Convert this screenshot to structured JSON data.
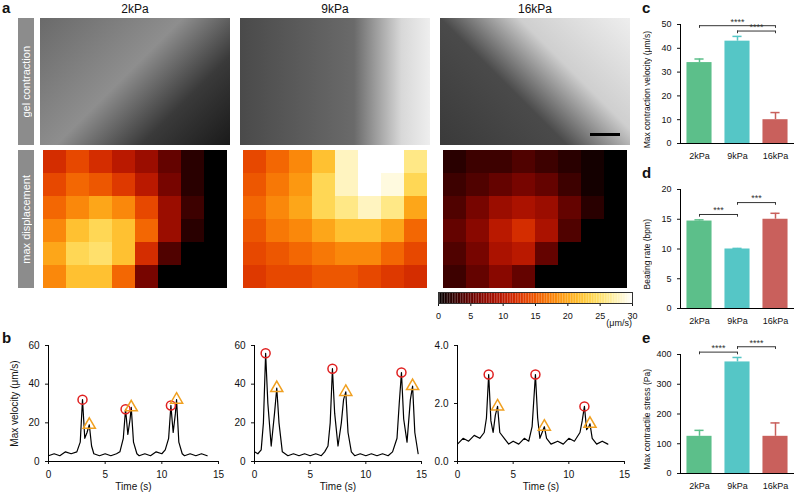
{
  "chart_data": [
    {
      "type": "heatmap",
      "panel": "a",
      "columns": [
        "2kPa",
        "9kPa",
        "16kPa"
      ],
      "rows": [
        "gel contraction",
        "max displacement"
      ],
      "tick_labels": false,
      "cells": [
        [
          [
            12,
            14,
            12,
            10,
            8,
            5,
            2,
            0
          ],
          [
            14,
            16,
            15,
            13,
            10,
            6,
            2,
            0
          ],
          [
            16,
            18,
            20,
            18,
            14,
            8,
            3,
            0
          ],
          [
            18,
            22,
            24,
            22,
            16,
            8,
            2,
            0
          ],
          [
            20,
            24,
            25,
            22,
            12,
            4,
            0,
            0
          ],
          [
            18,
            22,
            22,
            16,
            6,
            0,
            0,
            0
          ]
        ],
        [
          [
            14,
            16,
            18,
            22,
            28,
            30,
            30,
            26
          ],
          [
            15,
            17,
            19,
            24,
            28,
            30,
            29,
            24
          ],
          [
            16,
            18,
            20,
            24,
            26,
            28,
            26,
            20
          ],
          [
            15,
            17,
            18,
            20,
            22,
            22,
            20,
            16
          ],
          [
            14,
            15,
            16,
            17,
            18,
            18,
            16,
            14
          ],
          [
            13,
            14,
            14,
            15,
            15,
            14,
            13,
            12
          ]
        ],
        [
          [
            2,
            3,
            3,
            4,
            3,
            2,
            1,
            0
          ],
          [
            3,
            4,
            5,
            6,
            5,
            3,
            1,
            0
          ],
          [
            4,
            6,
            8,
            9,
            8,
            5,
            2,
            0
          ],
          [
            5,
            7,
            10,
            12,
            9,
            4,
            0,
            0
          ],
          [
            4,
            6,
            9,
            10,
            5,
            0,
            0,
            0
          ],
          [
            3,
            5,
            7,
            5,
            0,
            0,
            0,
            0
          ]
        ]
      ],
      "colorbar": {
        "range": [
          0,
          30
        ],
        "ticks": [
          0,
          5,
          10,
          15,
          20,
          25,
          30
        ],
        "label": "(μm/s)"
      }
    },
    {
      "type": "line",
      "panel": "b",
      "xlabel": "Time (s)",
      "ylabel": "Max velocity (μm/s)",
      "color": "#000000",
      "xlim": [
        0,
        15
      ],
      "xticks": [
        0,
        5,
        10,
        15
      ],
      "ylim": [
        0,
        60
      ],
      "yticks": [
        0,
        20,
        40,
        60
      ],
      "x": [
        0,
        0.5,
        1,
        1.5,
        2,
        2.5,
        2.8,
        3.0,
        3.2,
        3.4,
        3.6,
        3.8,
        4.0,
        4.5,
        5,
        5.5,
        6,
        6.3,
        6.6,
        6.8,
        7.0,
        7.2,
        7.3,
        7.5,
        7.8,
        8,
        8.5,
        9,
        9.5,
        10,
        10.3,
        10.6,
        10.8,
        11.0,
        11.2,
        11.3,
        11.5,
        11.8,
        12,
        12.5,
        13,
        13.5,
        14
      ],
      "values": [
        3,
        4,
        3,
        5,
        4,
        5,
        10,
        32,
        12,
        15,
        19,
        8,
        4,
        3,
        4,
        3,
        4,
        5,
        12,
        27,
        14,
        22,
        28,
        10,
        4,
        3,
        4,
        3,
        5,
        4,
        6,
        12,
        29,
        15,
        25,
        32,
        10,
        4,
        3,
        4,
        3,
        4,
        3
      ],
      "markers": [
        {
          "marker": "circle",
          "color": "#e02020",
          "x": [
            3.0,
            6.8,
            10.8
          ],
          "values": [
            32,
            27,
            29
          ]
        },
        {
          "marker": "triangle",
          "color": "#f0a020",
          "x": [
            3.6,
            7.3,
            11.3
          ],
          "values": [
            19,
            28,
            32
          ]
        }
      ]
    },
    {
      "type": "line",
      "xlabel": "Time (s)",
      "color": "#000000",
      "xlim": [
        0,
        15
      ],
      "xticks": [
        0,
        5,
        10,
        15
      ],
      "ylim": [
        0,
        60
      ],
      "yticks": [
        0,
        20,
        40,
        60
      ],
      "x": [
        0,
        0.3,
        0.6,
        0.8,
        1.0,
        1.2,
        1.5,
        1.8,
        2.0,
        2.2,
        2.5,
        3,
        3.5,
        4,
        4.5,
        5,
        5.5,
        6,
        6.3,
        6.6,
        6.8,
        7.0,
        7.2,
        7.5,
        7.8,
        8.0,
        8.2,
        8.4,
        8.7,
        9,
        9.5,
        10,
        10.5,
        11,
        11.5,
        12,
        12.4,
        12.8,
        13.0,
        13.2,
        13.4,
        13.7,
        14.0,
        14.2,
        14.4,
        14.7
      ],
      "values": [
        5,
        4,
        6,
        20,
        56,
        30,
        8,
        25,
        38,
        20,
        5,
        3,
        4,
        3,
        4,
        3,
        4,
        3,
        5,
        8,
        20,
        48,
        25,
        8,
        20,
        32,
        36,
        15,
        5,
        3,
        4,
        3,
        4,
        3,
        4,
        3,
        5,
        12,
        30,
        46,
        22,
        10,
        32,
        39,
        15,
        4
      ],
      "markers": [
        {
          "marker": "circle",
          "color": "#e02020",
          "x": [
            1.0,
            7.0,
            13.2
          ],
          "values": [
            56,
            48,
            46
          ]
        },
        {
          "marker": "triangle",
          "color": "#f0a020",
          "x": [
            2.0,
            8.2,
            14.2
          ],
          "values": [
            38,
            36,
            39
          ]
        }
      ]
    },
    {
      "type": "line",
      "xlabel": "Time (s)",
      "color": "#000000",
      "xlim": [
        0,
        15
      ],
      "xticks": [
        0,
        5,
        10,
        15
      ],
      "ylim": [
        0,
        4
      ],
      "yticks": [
        0,
        2,
        4
      ],
      "x": [
        0,
        0.5,
        1,
        1.5,
        2,
        2.4,
        2.6,
        2.8,
        3.0,
        3.2,
        3.4,
        3.6,
        3.8,
        4.2,
        4.6,
        5,
        5.5,
        6,
        6.4,
        6.7,
        7.0,
        7.2,
        7.4,
        7.6,
        7.8,
        8.0,
        8.4,
        9,
        9.5,
        10,
        10.5,
        11,
        11.2,
        11.4,
        11.6,
        11.8,
        11.9,
        12.1,
        12.5,
        13,
        13.5
      ],
      "values": [
        0.6,
        0.8,
        0.7,
        0.9,
        0.8,
        1.0,
        1.5,
        3.0,
        1.4,
        1.0,
        1.6,
        1.9,
        1.0,
        0.8,
        0.6,
        0.7,
        0.6,
        0.8,
        0.7,
        1.2,
        3.0,
        1.5,
        0.8,
        1.0,
        1.2,
        0.8,
        0.6,
        0.7,
        0.6,
        0.8,
        0.7,
        1.0,
        1.4,
        1.9,
        1.1,
        1.2,
        1.3,
        0.8,
        0.6,
        0.7,
        0.6
      ],
      "markers": [
        {
          "marker": "circle",
          "color": "#e02020",
          "x": [
            2.8,
            7.0,
            11.4
          ],
          "values": [
            3.0,
            3.0,
            1.9
          ]
        },
        {
          "marker": "triangle",
          "color": "#f0a020",
          "x": [
            3.6,
            7.8,
            11.9
          ],
          "values": [
            1.9,
            1.2,
            1.3
          ]
        }
      ]
    },
    {
      "type": "bar",
      "panel": "c",
      "ylabel": "Max contraction velocity (μm/s)",
      "categories": [
        "2kPa",
        "9kPa",
        "16kPa"
      ],
      "values": [
        34,
        43,
        10
      ],
      "errors": [
        1.5,
        2,
        3
      ],
      "colors": [
        "#5cbf8a",
        "#55c6c6",
        "#c9605c"
      ],
      "ylim": [
        0,
        50
      ],
      "yticks": [
        0,
        10,
        20,
        30,
        40,
        50
      ],
      "significance": [
        {
          "pair": [
            "9kPa",
            "16kPa"
          ],
          "label": "****"
        },
        {
          "pair": [
            "2kPa",
            "16kPa"
          ],
          "label": "****"
        }
      ]
    },
    {
      "type": "bar",
      "panel": "d",
      "ylabel": "Beating rate (bpm)",
      "categories": [
        "2kPa",
        "9kPa",
        "16kPa"
      ],
      "values": [
        14.7,
        10,
        15
      ],
      "errors": [
        0.2,
        0.1,
        1.0
      ],
      "colors": [
        "#5cbf8a",
        "#55c6c6",
        "#c9605c"
      ],
      "ylim": [
        0,
        20
      ],
      "yticks": [
        0,
        5,
        10,
        15,
        20
      ],
      "significance": [
        {
          "pair": [
            "2kPa",
            "9kPa"
          ],
          "label": "***"
        },
        {
          "pair": [
            "9kPa",
            "16kPa"
          ],
          "label": "***"
        }
      ]
    },
    {
      "type": "bar",
      "panel": "e",
      "ylabel": "Max contractile stress (Pa)",
      "categories": [
        "2kPa",
        "9kPa",
        "16kPa"
      ],
      "values": [
        125,
        375,
        125
      ],
      "errors": [
        20,
        15,
        45
      ],
      "colors": [
        "#5cbf8a",
        "#55c6c6",
        "#c9605c"
      ],
      "ylim": [
        0,
        400
      ],
      "yticks": [
        0,
        100,
        200,
        300,
        400
      ],
      "significance": [
        {
          "pair": [
            "2kPa",
            "9kPa"
          ],
          "label": "****"
        },
        {
          "pair": [
            "9kPa",
            "16kPa"
          ],
          "label": "****"
        }
      ]
    }
  ]
}
